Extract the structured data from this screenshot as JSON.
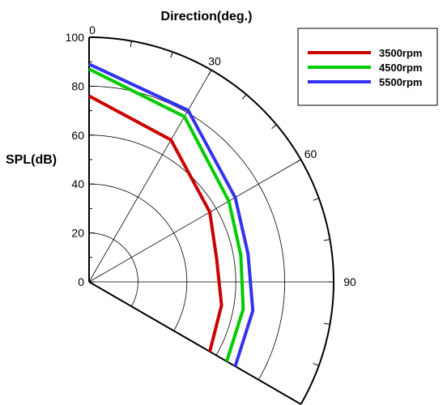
{
  "chart_data": {
    "type": "polar-line",
    "title": "Direction(deg.)",
    "ylabel": "SPL(dB)",
    "angle_ticks": [
      "0",
      "30",
      "60",
      "90"
    ],
    "radial_ticks": [
      "0",
      "20",
      "40",
      "60",
      "80",
      "100"
    ],
    "angle_range": [
      0,
      120
    ],
    "radial_range": [
      0,
      100
    ],
    "legend_position": "top-right",
    "series": [
      {
        "name": "3500rpm",
        "color": "#cc0000",
        "points": [
          [
            0,
            76
          ],
          [
            30,
            67
          ],
          [
            60,
            57
          ],
          [
            80,
            53
          ],
          [
            100,
            55
          ],
          [
            120,
            57
          ]
        ]
      },
      {
        "name": "4500rpm",
        "color": "#00cc00",
        "points": [
          [
            0,
            87
          ],
          [
            30,
            78
          ],
          [
            60,
            66
          ],
          [
            80,
            63
          ],
          [
            100,
            64
          ],
          [
            120,
            65
          ]
        ]
      },
      {
        "name": "5500rpm",
        "color": "#3333ee",
        "points": [
          [
            0,
            89
          ],
          [
            30,
            81
          ],
          [
            60,
            69
          ],
          [
            80,
            66
          ],
          [
            100,
            68
          ],
          [
            120,
            69
          ]
        ]
      }
    ]
  }
}
